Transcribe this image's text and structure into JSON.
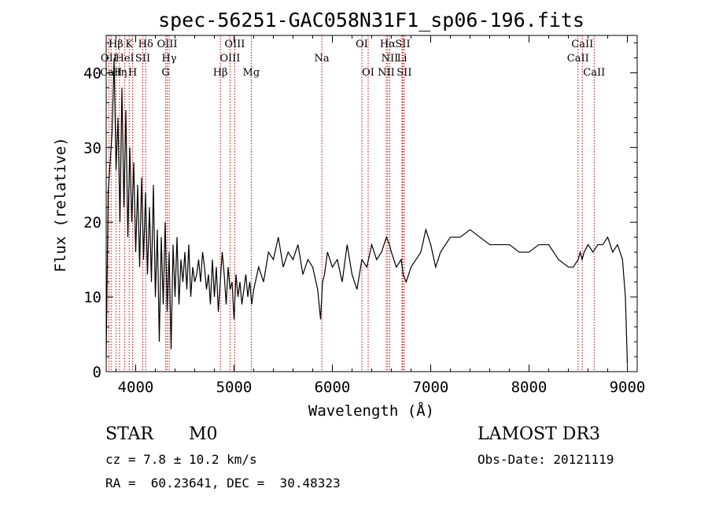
{
  "chart_data": {
    "type": "line",
    "title": "spec-56251-GAC058N31F1_sp06-196.fits",
    "xlabel": "Wavelength (Å)",
    "ylabel": "Flux (relative)",
    "xlim": [
      3700,
      9100
    ],
    "ylim": [
      0,
      45
    ],
    "xticks": [
      4000,
      5000,
      6000,
      7000,
      8000,
      9000
    ],
    "yticks": [
      0,
      10,
      20,
      30,
      40
    ],
    "series": [
      {
        "name": "spectrum",
        "x": [
          3700,
          3720,
          3740,
          3760,
          3780,
          3800,
          3820,
          3840,
          3860,
          3880,
          3900,
          3920,
          3940,
          3960,
          3980,
          4000,
          4020,
          4040,
          4060,
          4080,
          4100,
          4120,
          4140,
          4160,
          4180,
          4200,
          4220,
          4240,
          4260,
          4280,
          4300,
          4320,
          4340,
          4360,
          4380,
          4400,
          4420,
          4440,
          4460,
          4480,
          4500,
          4520,
          4540,
          4560,
          4580,
          4600,
          4620,
          4640,
          4660,
          4680,
          4700,
          4720,
          4740,
          4760,
          4780,
          4800,
          4820,
          4840,
          4860,
          4880,
          4900,
          4920,
          4940,
          4960,
          4980,
          5000,
          5020,
          5040,
          5060,
          5080,
          5100,
          5120,
          5140,
          5160,
          5180,
          5200,
          5250,
          5300,
          5350,
          5400,
          5450,
          5500,
          5550,
          5600,
          5650,
          5700,
          5750,
          5800,
          5850,
          5880,
          5900,
          5920,
          5950,
          6000,
          6050,
          6100,
          6150,
          6200,
          6250,
          6300,
          6350,
          6400,
          6450,
          6500,
          6550,
          6580,
          6600,
          6650,
          6700,
          6720,
          6750,
          6800,
          6850,
          6900,
          6950,
          7000,
          7050,
          7100,
          7150,
          7200,
          7300,
          7400,
          7500,
          7600,
          7700,
          7800,
          7900,
          8000,
          8100,
          8200,
          8300,
          8400,
          8450,
          8500,
          8520,
          8540,
          8560,
          8600,
          8650,
          8700,
          8750,
          8800,
          8850,
          8900,
          8950,
          8980,
          9000
        ],
        "values": [
          2,
          24,
          28,
          32,
          42,
          27,
          34,
          20,
          38,
          22,
          35,
          18,
          30,
          20,
          28,
          16,
          25,
          14,
          26,
          15,
          24,
          13,
          22,
          12,
          25,
          10,
          19,
          4,
          18,
          9,
          20,
          8,
          16,
          3,
          17,
          10,
          18,
          9,
          15,
          12,
          16,
          11,
          17,
          10,
          14,
          12,
          13,
          15,
          12,
          16,
          14,
          11,
          13,
          9,
          15,
          10,
          14,
          8,
          12,
          16,
          13,
          9,
          14,
          11,
          12,
          7,
          13,
          10,
          12,
          9,
          11,
          13,
          10,
          12,
          9,
          11,
          14,
          12,
          16,
          15,
          18,
          14,
          16,
          15,
          17,
          13,
          15,
          14,
          11,
          7,
          12,
          13,
          16,
          14,
          15,
          12,
          17,
          13,
          11,
          15,
          14,
          17,
          15,
          16,
          18,
          17,
          16,
          14,
          15,
          13,
          12,
          14,
          15,
          16,
          19,
          17,
          14,
          16,
          17,
          18,
          18,
          19,
          18,
          17,
          17,
          17,
          16,
          16,
          17,
          17,
          15,
          14,
          14,
          15,
          16,
          15,
          16,
          17,
          16,
          17,
          17,
          18,
          16,
          17,
          15,
          10,
          1
        ]
      }
    ],
    "lines": [
      {
        "name": "Hβ",
        "x": 3799,
        "row": 0,
        "display": "Hβ"
      },
      {
        "name": "K",
        "x": 3934,
        "row": 0,
        "display": "K"
      },
      {
        "name": "Hδ",
        "x": 4102,
        "row": 0,
        "display": "Hδ"
      },
      {
        "name": "OIII",
        "x": 4320,
        "row": 0,
        "display": "OIII"
      },
      {
        "name": "OIII",
        "x": 5007,
        "row": 0,
        "display": "OIII"
      },
      {
        "name": "OI",
        "x": 6300,
        "row": 0,
        "display": "OI"
      },
      {
        "name": "Hα",
        "x": 6563,
        "row": 0,
        "display": "Hα"
      },
      {
        "name": "SII",
        "x": 6716,
        "row": 0,
        "display": "SII"
      },
      {
        "name": "CaII",
        "x": 8542,
        "row": 0,
        "display": "CaII"
      },
      {
        "name": "OII",
        "x": 3727,
        "row": 1,
        "display": "OII"
      },
      {
        "name": "HeI",
        "x": 3889,
        "row": 1,
        "display": "HeI"
      },
      {
        "name": "SII",
        "x": 4072,
        "row": 1,
        "display": "SII"
      },
      {
        "name": "Hγ",
        "x": 4340,
        "row": 1,
        "display": "Hγ"
      },
      {
        "name": "OIII",
        "x": 4959,
        "row": 1,
        "display": "OIII"
      },
      {
        "name": "Na",
        "x": 5893,
        "row": 1,
        "display": "Na"
      },
      {
        "name": "NII",
        "x": 6584,
        "row": 1,
        "display": "NII"
      },
      {
        "name": "Li",
        "x": 6708,
        "row": 1,
        "display": "Li"
      },
      {
        "name": "CaII",
        "x": 8498,
        "row": 1,
        "display": "CaII"
      },
      {
        "name": "CaII",
        "x": 3750,
        "row": 2,
        "display": "CaII"
      },
      {
        "name": "Hη",
        "x": 3835,
        "row": 2,
        "display": "Hη"
      },
      {
        "name": "H",
        "x": 3969,
        "row": 2,
        "display": "H"
      },
      {
        "name": "G",
        "x": 4305,
        "row": 2,
        "display": "G"
      },
      {
        "name": "Hβ",
        "x": 4861,
        "row": 2,
        "display": "Hβ"
      },
      {
        "name": "Mg",
        "x": 5175,
        "row": 2,
        "display": "Mg"
      },
      {
        "name": "OI",
        "x": 6364,
        "row": 2,
        "display": "OI"
      },
      {
        "name": "NII",
        "x": 6548,
        "row": 2,
        "display": "NII"
      },
      {
        "name": "SII",
        "x": 6731,
        "row": 2,
        "display": "SII"
      },
      {
        "name": "CaII",
        "x": 8662,
        "row": 2,
        "display": "CaII"
      }
    ]
  },
  "info": {
    "class": "STAR",
    "subclass": "M0",
    "cz": "cz = 7.8 ± 10.2 km/s",
    "radec": "RA =  60.23641, DEC =  30.48323",
    "survey": "LAMOST DR3",
    "obsdate": "Obs-Date: 20121119"
  },
  "colors": {
    "spectrum": "#000000",
    "line_markers": "#cc0000",
    "axes": "#000000"
  }
}
